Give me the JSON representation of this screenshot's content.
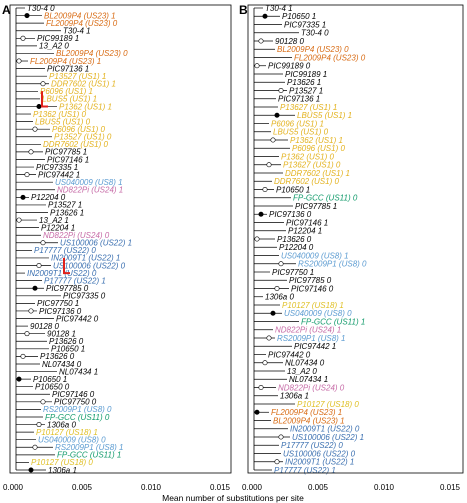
{
  "figure": {
    "x_axis_title": "Mean number of substitutions per site",
    "colors": {
      "black": "#000000",
      "us23": "#d86a12",
      "us1": "#e3b21e",
      "us8": "#5b9bd1",
      "us11": "#109a6a",
      "us22": "#3a6fb0",
      "us24": "#c66aa6",
      "us18": "#e0c026",
      "highlight": "#e0201a",
      "node_open": "#ffffff",
      "node_filled": "#000000"
    },
    "panels": [
      {
        "letter": "A",
        "x_ticks": [
          "0.000",
          "0.005",
          "0.010",
          "0.015"
        ],
        "tips": [
          {
            "label": "T30-4 0",
            "color": "black"
          },
          {
            "label": "BL2009P4 (US23) 1",
            "color": "us23"
          },
          {
            "label": "FL2009P4 (US23) 0",
            "color": "us23"
          },
          {
            "label": "T30-4 1",
            "color": "black"
          },
          {
            "label": "PIC99189 1",
            "color": "black"
          },
          {
            "label": "13_A2 0",
            "color": "black"
          },
          {
            "label": "BL2009P4 (US23) 0",
            "color": "us23"
          },
          {
            "label": "FL2009P4 (US23) 1",
            "color": "us23"
          },
          {
            "label": "PIC97136 1",
            "color": "black"
          },
          {
            "label": "P13527 (US1) 1",
            "color": "us1"
          },
          {
            "label": "DDR7602 (US1) 1",
            "color": "us1"
          },
          {
            "label": "P6096 (US1) 1",
            "color": "us1"
          },
          {
            "label": "LBUS5 (US1) 1",
            "color": "us1"
          },
          {
            "label": "P1362 (US1) 1",
            "color": "us1"
          },
          {
            "label": "P1362 (US1) 0",
            "color": "us1"
          },
          {
            "label": "LBUS5 (US1) 0",
            "color": "us1"
          },
          {
            "label": "P6096 (US1) 0",
            "color": "us1"
          },
          {
            "label": "P13527 (US1) 0",
            "color": "us1"
          },
          {
            "label": "DDR7602 (US1) 0",
            "color": "us1"
          },
          {
            "label": "PIC97785 1",
            "color": "black"
          },
          {
            "label": "PIC97146 1",
            "color": "black"
          },
          {
            "label": "PIC97335 1",
            "color": "black"
          },
          {
            "label": "PIC97442 1",
            "color": "black"
          },
          {
            "label": "US040009 (US8) 1",
            "color": "us8"
          },
          {
            "label": "ND822Pi (US24) 1",
            "color": "us24"
          },
          {
            "label": "P12204 0",
            "color": "black"
          },
          {
            "label": "P13527 1",
            "color": "black"
          },
          {
            "label": "P13626 1",
            "color": "black"
          },
          {
            "label": "13_A2 1",
            "color": "black"
          },
          {
            "label": "P12204 1",
            "color": "black"
          },
          {
            "label": "ND822Pi (US24) 0",
            "color": "us24"
          },
          {
            "label": "US100006 (US22) 1",
            "color": "us22"
          },
          {
            "label": "P17777 (US22) 0",
            "color": "us22"
          },
          {
            "label": "IN2009T1 (US22) 1",
            "color": "us22"
          },
          {
            "label": "US100006 (US22) 0",
            "color": "us22"
          },
          {
            "label": "IN2009T1 (US22) 0",
            "color": "us22"
          },
          {
            "label": "P17777 (US22) 1",
            "color": "us22"
          },
          {
            "label": "PIC97785 0",
            "color": "black"
          },
          {
            "label": "PIC97335 0",
            "color": "black"
          },
          {
            "label": "PIC97750 1",
            "color": "black"
          },
          {
            "label": "PIC97136 0",
            "color": "black"
          },
          {
            "label": "PIC97442 0",
            "color": "black"
          },
          {
            "label": "90128 0",
            "color": "black"
          },
          {
            "label": "90128 1",
            "color": "black"
          },
          {
            "label": "P13626 0",
            "color": "black"
          },
          {
            "label": "P10650 1",
            "color": "black"
          },
          {
            "label": "P13626 0",
            "color": "black"
          },
          {
            "label": "NL07434 0",
            "color": "black"
          },
          {
            "label": "NL07434 1",
            "color": "black"
          },
          {
            "label": "P10650 1",
            "color": "black"
          },
          {
            "label": "P10650 0",
            "color": "black"
          },
          {
            "label": "PIC97146 0",
            "color": "black"
          },
          {
            "label": "PIC97750 0",
            "color": "black"
          },
          {
            "label": "RS2009P1 (US8) 0",
            "color": "us8"
          },
          {
            "label": "FP-GCC (US11) 0",
            "color": "us11"
          },
          {
            "label": "1306a 0",
            "color": "black"
          },
          {
            "label": "P10127 (US18) 1",
            "color": "us18"
          },
          {
            "label": "US040009 (US8) 0",
            "color": "us8"
          },
          {
            "label": "RS2009P1 (US8) 1",
            "color": "us8"
          },
          {
            "label": "FP-GCC (US11) 1",
            "color": "us11"
          },
          {
            "label": "P10127 (US18) 0",
            "color": "us18"
          },
          {
            "label": "1306a 1",
            "color": "black"
          }
        ]
      },
      {
        "letter": "B",
        "x_ticks": [
          "0.000",
          "0.005",
          "0.010",
          "0.015"
        ],
        "tips": [
          {
            "label": "T30-4 1",
            "color": "black"
          },
          {
            "label": "P10650 1",
            "color": "black"
          },
          {
            "label": "PIC97335 1",
            "color": "black"
          },
          {
            "label": "T30-4 0",
            "color": "black"
          },
          {
            "label": "90128 0",
            "color": "black"
          },
          {
            "label": "BL2009P4 (US23) 0",
            "color": "us23"
          },
          {
            "label": "FL2009P4 (US23) 0",
            "color": "us23"
          },
          {
            "label": "PIC99189 0",
            "color": "black"
          },
          {
            "label": "PIC99189 1",
            "color": "black"
          },
          {
            "label": "P13626 1",
            "color": "black"
          },
          {
            "label": "P13527 1",
            "color": "black"
          },
          {
            "label": "PIC97136 1",
            "color": "black"
          },
          {
            "label": "P13627 (US1) 1",
            "color": "us1"
          },
          {
            "label": "LBUS5 (US1) 1",
            "color": "us1"
          },
          {
            "label": "P6096 (US1) 1",
            "color": "us1"
          },
          {
            "label": "LBUS5 (US1) 0",
            "color": "us1"
          },
          {
            "label": "P1362 (US1) 1",
            "color": "us1"
          },
          {
            "label": "P6096 (US1) 0",
            "color": "us1"
          },
          {
            "label": "P1362 (US1) 0",
            "color": "us1"
          },
          {
            "label": "P13627 (US1) 0",
            "color": "us1"
          },
          {
            "label": "DDR7602 (US1) 1",
            "color": "us1"
          },
          {
            "label": "DDR7602 (US1) 0",
            "color": "us1"
          },
          {
            "label": "P10650 1",
            "color": "black"
          },
          {
            "label": "FP-GCC (US11) 0",
            "color": "us11"
          },
          {
            "label": "PIC97785 1",
            "color": "black"
          },
          {
            "label": "PIC97136 0",
            "color": "black"
          },
          {
            "label": "PIC97146 1",
            "color": "black"
          },
          {
            "label": "P12204 1",
            "color": "black"
          },
          {
            "label": "P13626 0",
            "color": "black"
          },
          {
            "label": "P12204 0",
            "color": "black"
          },
          {
            "label": "US040009 (US8) 1",
            "color": "us8"
          },
          {
            "label": "RS2009P1 (US8) 0",
            "color": "us8"
          },
          {
            "label": "PIC97750 1",
            "color": "black"
          },
          {
            "label": "PIC97785 0",
            "color": "black"
          },
          {
            "label": "PIC97146 0",
            "color": "black"
          },
          {
            "label": "1306a 0",
            "color": "black"
          },
          {
            "label": "P10127 (US18) 1",
            "color": "us18"
          },
          {
            "label": "US040009 (US8) 0",
            "color": "us8"
          },
          {
            "label": "FP-GCC (US11) 1",
            "color": "us11"
          },
          {
            "label": "ND822Pi (US24) 1",
            "color": "us24"
          },
          {
            "label": "RS2009P1 (US8) 1",
            "color": "us8"
          },
          {
            "label": "PIC97442 1",
            "color": "black"
          },
          {
            "label": "PIC97442 0",
            "color": "black"
          },
          {
            "label": "NL07434 0",
            "color": "black"
          },
          {
            "label": "13_A2 0",
            "color": "black"
          },
          {
            "label": "NL07434 1",
            "color": "black"
          },
          {
            "label": "ND822Pi (US24) 0",
            "color": "us24"
          },
          {
            "label": "1306a 1",
            "color": "black"
          },
          {
            "label": "P10127 (US18) 0",
            "color": "us18"
          },
          {
            "label": "FL2009P4 (US23) 1",
            "color": "us23"
          },
          {
            "label": "BL2009P4 (US23) 1",
            "color": "us23"
          },
          {
            "label": "IN2009T1 (US22) 0",
            "color": "us22"
          },
          {
            "label": "US100006 (US22) 1",
            "color": "us22"
          },
          {
            "label": "P17777 (US22) 0",
            "color": "us22"
          },
          {
            "label": "US100006 (US22) 0",
            "color": "us22"
          },
          {
            "label": "IN2009T1 (US22) 1",
            "color": "us22"
          },
          {
            "label": "P17777 (US22) 1",
            "color": "us22"
          }
        ]
      }
    ]
  }
}
